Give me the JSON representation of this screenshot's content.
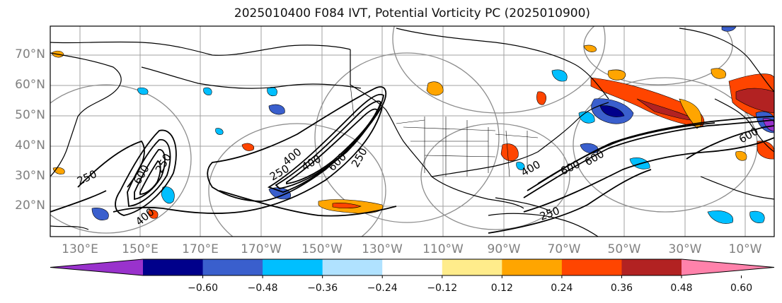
{
  "title": "2025010400 F084 IVT, Potential Vorticity PC (2025010900)",
  "map": {
    "lat_labels": [
      "70°N",
      "60°N",
      "50°N",
      "40°N",
      "30°N",
      "20°N"
    ],
    "lon_labels": [
      "130°E",
      "150°E",
      "170°E",
      "170°W",
      "150°W",
      "130°W",
      "110°W",
      "90°W",
      "70°W",
      "50°W",
      "30°W",
      "10°W"
    ],
    "ivt_contour_labels": [
      "250",
      "400",
      "250",
      "600",
      "400",
      "250",
      "600",
      "250",
      "400",
      "600",
      "250",
      "600",
      "600",
      "400"
    ]
  },
  "colorbar": {
    "ticks": [
      "−0.60",
      "−0.48",
      "−0.36",
      "−0.24",
      "−0.12",
      "0.12",
      "0.24",
      "0.36",
      "0.48",
      "0.60"
    ],
    "colors": [
      "#9932CC",
      "#00008B",
      "#3A5FCD",
      "#00BFFF",
      "#B0E2FF",
      "#FFFFFF",
      "#FFEC8B",
      "#FFA500",
      "#FF4500",
      "#B22222",
      "#FF82AB"
    ]
  }
}
